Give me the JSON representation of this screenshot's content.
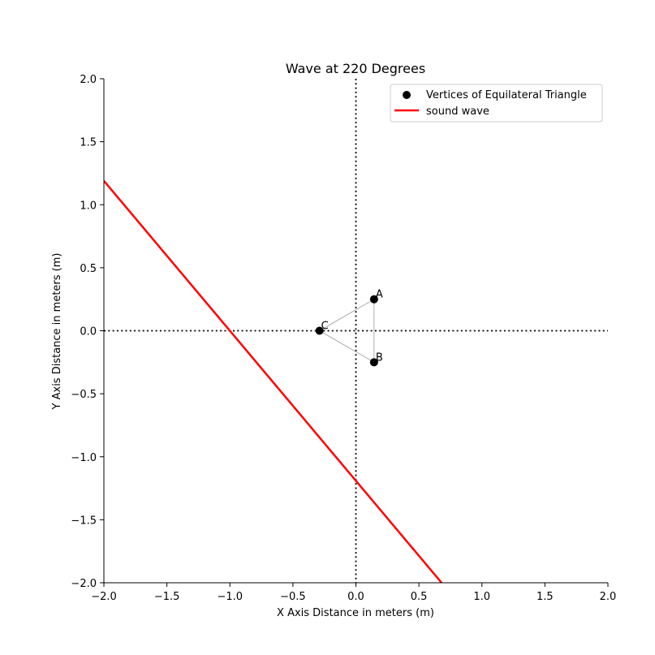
{
  "chart_data": {
    "type": "scatter",
    "title": "Wave at 220 Degrees",
    "xlabel": "X Axis Distance in meters (m)",
    "ylabel": "Y Axis Distance in meters (m)",
    "xlim": [
      -2.0,
      2.0
    ],
    "ylim": [
      -2.0,
      2.0
    ],
    "xticks": [
      -2.0,
      -1.5,
      -1.0,
      -0.5,
      0.0,
      0.5,
      1.0,
      1.5,
      2.0
    ],
    "yticks": [
      -2.0,
      -1.5,
      -1.0,
      -0.5,
      0.0,
      0.5,
      1.0,
      1.5,
      2.0
    ],
    "xtick_labels": [
      "−2.0",
      "−1.5",
      "−1.0",
      "−0.5",
      "0.0",
      "0.5",
      "1.0",
      "1.5",
      "2.0"
    ],
    "ytick_labels": [
      "−2.0",
      "−1.5",
      "−1.0",
      "−0.5",
      "0.0",
      "0.5",
      "1.0",
      "1.5",
      "2.0"
    ],
    "grid": false,
    "legend_position": "top-right",
    "vertices": {
      "name": "Vertices of Equilateral Triangle",
      "color": "#000000",
      "points": [
        {
          "label": "A",
          "x": 0.144,
          "y": 0.25
        },
        {
          "label": "B",
          "x": 0.144,
          "y": -0.25
        },
        {
          "label": "C",
          "x": -0.289,
          "y": 0.0
        }
      ]
    },
    "triangle_edge_color": "#999999",
    "wave": {
      "name": "sound wave",
      "color": "#ff0000",
      "angle_degrees": 220,
      "points": [
        [
          -2.0,
          1.19
        ],
        [
          0.68,
          -2.0
        ]
      ]
    },
    "reference_lines": [
      {
        "orientation": "horizontal",
        "value": 0.0,
        "style": "dotted",
        "color": "#000000"
      },
      {
        "orientation": "vertical",
        "value": 0.0,
        "style": "dotted",
        "color": "#000000"
      }
    ]
  }
}
